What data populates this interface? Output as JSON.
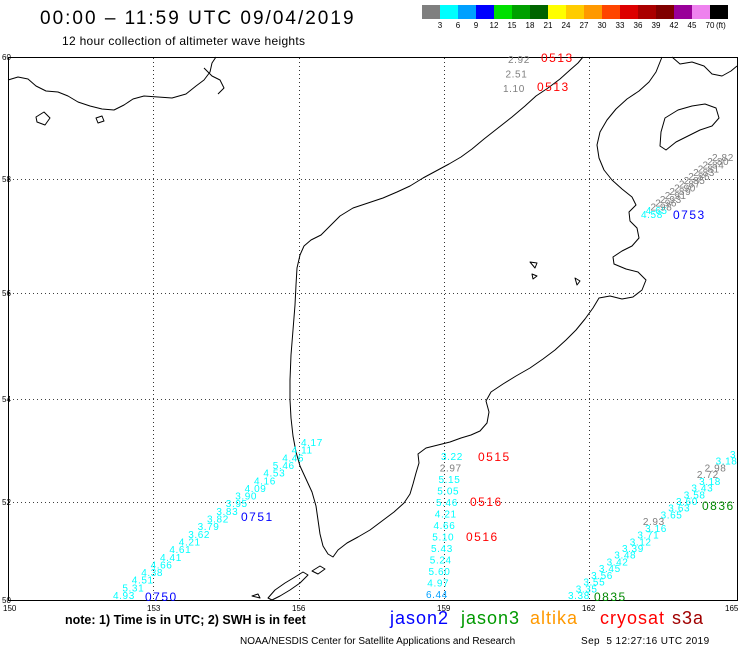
{
  "header": {
    "title": "00:00 – 11:59 UTC 09/04/2019",
    "subtitle": "12 hour collection of altimeter wave heights"
  },
  "color_scale": {
    "colors": [
      "#7f7f7f",
      "#00ffff",
      "#00a0ff",
      "#0000ff",
      "#00e000",
      "#00a000",
      "#006400",
      "#ffff00",
      "#ffcc00",
      "#ff9900",
      "#ff4500",
      "#dd0000",
      "#aa0000",
      "#800000",
      "#990099",
      "#ee82ee",
      "#000000"
    ],
    "labels": [
      "3",
      "6",
      "9",
      "12",
      "15",
      "18",
      "21",
      "24",
      "27",
      "30",
      "33",
      "36",
      "39",
      "42",
      "45",
      "70"
    ],
    "unit": "(ft)"
  },
  "map": {
    "lat_labels": [
      "60",
      "58",
      "56",
      "54",
      "52",
      "50"
    ],
    "lon_labels": [
      "150",
      "153",
      "156",
      "159",
      "162",
      "165"
    ],
    "coastline_color": "#000000"
  },
  "tracks": [
    {
      "values": [
        "4.93",
        "5.31",
        "4.51",
        "4.38",
        "4.66",
        "4.41",
        "4.61",
        "4.21",
        "3.62",
        "3.79",
        "3.82",
        "3.83",
        "3.95",
        "3.90",
        "4.09",
        "4.16",
        "4.53",
        "5.46",
        "4.46",
        "4.11",
        "4.17"
      ]
    },
    {
      "values": [
        "3.22",
        "2.97",
        "5.15",
        "5.05",
        "5.46",
        "4.21",
        "4.66",
        "5.10",
        "5.43",
        "5.24",
        "5.60",
        "4.97",
        "6.44"
      ]
    },
    {
      "values": [
        "2.92",
        "2.51",
        "1.10"
      ]
    },
    {
      "values": [
        "4.58",
        "4.65",
        "2.98",
        "2.96",
        "2.93",
        "2.91",
        "2.89",
        "2.90",
        "2.87",
        "2.85",
        "2.86",
        "2.83",
        "2.81",
        "2.84",
        "2.80",
        "2.82"
      ]
    },
    {
      "values": [
        "3.38",
        "3.35",
        "3.55",
        "3.56",
        "3.45",
        "3.42",
        "3.48",
        "3.39",
        "3.12",
        "3.71",
        "3.16",
        "2.93",
        "3.65",
        "3.63",
        "3.60",
        "3.58",
        "3.43",
        "3.18",
        "2.72",
        "2.98",
        "3.18",
        "3"
      ]
    }
  ],
  "passes": [
    {
      "label": "0513",
      "color": "#ff0000"
    },
    {
      "label": "0513",
      "color": "#ff0000"
    },
    {
      "label": "0515",
      "color": "#ff0000"
    },
    {
      "label": "0516",
      "color": "#ff0000"
    },
    {
      "label": "0516",
      "color": "#ff0000"
    },
    {
      "label": "0750",
      "color": "#0000ff"
    },
    {
      "label": "0751",
      "color": "#0000ff"
    },
    {
      "label": "0753",
      "color": "#0000ff"
    },
    {
      "label": "0835",
      "color": "#008800"
    },
    {
      "label": "0836",
      "color": "#008800"
    }
  ],
  "legend": {
    "note": "note: 1) Time is in UTC; 2) SWH is in feet",
    "satellites": [
      {
        "name": "jason2",
        "color": "#0000ff"
      },
      {
        "name": "jason3",
        "color": "#009900"
      },
      {
        "name": "altika",
        "color": "#ff9900"
      },
      {
        "name": "cryosat",
        "color": "#ff0000"
      },
      {
        "name": "s3a",
        "color": "#a00000"
      }
    ]
  },
  "footer": {
    "credit": "NOAA/NESDIS Center for Satellite Applications and Research",
    "timestamp": "Sep  5 12:27:16 UTC 2019"
  }
}
